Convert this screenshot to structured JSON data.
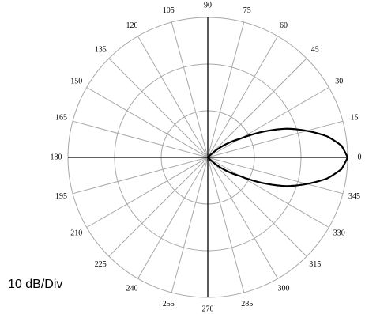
{
  "chart_data": {
    "type": "polar",
    "title": "",
    "scale_label": "10 dB/Div",
    "angle_unit": "degrees",
    "angle_tick_step": 15,
    "angle_ticks": [
      "0",
      "15",
      "30",
      "45",
      "60",
      "75",
      "90",
      "105",
      "120",
      "135",
      "150",
      "165",
      "180",
      "195",
      "210",
      "225",
      "240",
      "255",
      "270",
      "285",
      "300",
      "315",
      "330",
      "345"
    ],
    "radial_range_db": [
      -30,
      0
    ],
    "radial_divisions": 3,
    "radial_step_db": 10,
    "grid": true,
    "series": [
      {
        "color": "#000000",
        "angles": [
          0,
          5,
          10,
          15,
          20,
          25,
          30,
          45,
          60,
          90,
          120,
          150,
          180,
          210,
          240,
          270,
          300,
          315,
          330,
          335,
          340,
          345,
          350,
          355
        ],
        "values_db": [
          0,
          -1.2,
          -4,
          -8,
          -12,
          -17,
          -22,
          -30,
          -30,
          -30,
          -30,
          -30,
          -30,
          -30,
          -30,
          -30,
          -30,
          -30,
          -22,
          -17,
          -12,
          -8,
          -4,
          -1.2
        ]
      }
    ]
  },
  "colors": {
    "grid": "#a8a8a8",
    "axes": "#000000",
    "trace": "#000000",
    "background": "#ffffff"
  }
}
